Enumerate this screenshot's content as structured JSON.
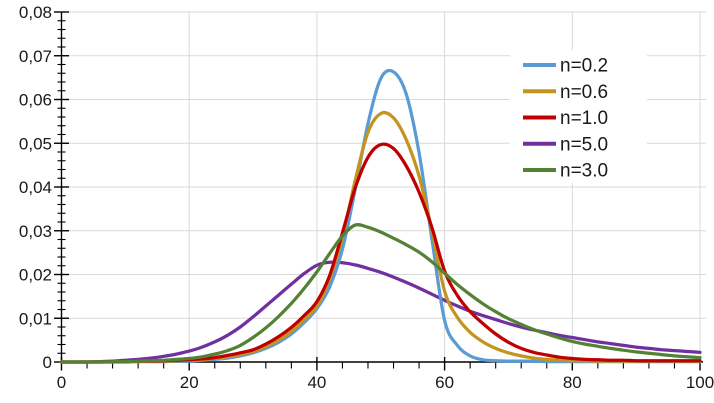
{
  "chart_data": {
    "type": "line",
    "title": "",
    "xlabel": "",
    "ylabel": "",
    "xlim": [
      0,
      100
    ],
    "ylim": [
      0,
      0.08
    ],
    "grid": true,
    "decimal_separator": ",",
    "x_tick_labels": [
      "0",
      "20",
      "40",
      "60",
      "80",
      "100"
    ],
    "x_major_ticks": [
      0,
      20,
      40,
      60,
      80,
      100
    ],
    "x_minor_step": 4,
    "y_tick_labels": [
      "0",
      "0,01",
      "0,02",
      "0,03",
      "0,04",
      "0,05",
      "0,06",
      "0,07",
      "0,08"
    ],
    "y_major_ticks": [
      0,
      0.01,
      0.02,
      0.03,
      0.04,
      0.05,
      0.06,
      0.07,
      0.08
    ],
    "y_minor_step": 0.002,
    "legend_position": "top-right-inside",
    "legend_order": [
      "n=0.2",
      "n=0.6",
      "n=1.0",
      "n=5.0",
      "n=3.0"
    ],
    "draw_order": [
      "n=5.0",
      "n=0.2",
      "n=0.6",
      "n=1.0",
      "n=3.0"
    ],
    "x": [
      0,
      2,
      4,
      6,
      8,
      10,
      12,
      14,
      16,
      18,
      20,
      22,
      24,
      26,
      28,
      30,
      32,
      34,
      36,
      38,
      40,
      42,
      44,
      46,
      48,
      50,
      52,
      54,
      56,
      58,
      60,
      62,
      64,
      66,
      68,
      70,
      72,
      74,
      76,
      78,
      80,
      82,
      84,
      86,
      88,
      90,
      92,
      94,
      96,
      98,
      100
    ],
    "series": [
      {
        "name": "n=0.2",
        "color": "#5B9BD5",
        "peak": {
          "x": 51,
          "y": 0.0665
        },
        "values": [
          0,
          0,
          0,
          0,
          0,
          0,
          0.0001,
          0.0001,
          0.0001,
          0.0002,
          0.0002,
          0.0004,
          0.0006,
          0.0009,
          0.0014,
          0.0021,
          0.0031,
          0.0045,
          0.0064,
          0.009,
          0.0122,
          0.0172,
          0.0258,
          0.0395,
          0.0545,
          0.0648,
          0.0663,
          0.0612,
          0.0478,
          0.0283,
          0.0095,
          0.0038,
          0.0014,
          0.0005,
          0.0003,
          0.0002,
          0.0002,
          0.0002,
          0.0001,
          0.0001,
          0.0001,
          0.0001,
          0.0001,
          0.0001,
          0.0001,
          0.0001,
          0.0001,
          0.0001,
          0.0001,
          0.0001,
          0.0001
        ]
      },
      {
        "name": "n=0.6",
        "color": "#C4941E",
        "peak": {
          "x": 51,
          "y": 0.057
        },
        "values": [
          0,
          0,
          0,
          0,
          0,
          0.0001,
          0.0001,
          0.0002,
          0.0002,
          0.0003,
          0.0004,
          0.0006,
          0.0008,
          0.0012,
          0.0017,
          0.0024,
          0.0035,
          0.005,
          0.007,
          0.0096,
          0.0128,
          0.019,
          0.0285,
          0.0415,
          0.0525,
          0.0568,
          0.0558,
          0.0508,
          0.0425,
          0.0302,
          0.0162,
          0.0102,
          0.0068,
          0.0046,
          0.0031,
          0.0021,
          0.0014,
          0.0009,
          0.0006,
          0.0004,
          0.0003,
          0.0003,
          0.0002,
          0.0002,
          0.0002,
          0.0002,
          0.0002,
          0.0002,
          0.0002,
          0.0002,
          0.0002
        ]
      },
      {
        "name": "n=1.0",
        "color": "#C00000",
        "peak": {
          "x": 50,
          "y": 0.05
        },
        "values": [
          0,
          0,
          0,
          0,
          0.0001,
          0.0001,
          0.0002,
          0.0002,
          0.0003,
          0.0004,
          0.0005,
          0.0007,
          0.001,
          0.0015,
          0.0021,
          0.0028,
          0.0041,
          0.0058,
          0.0079,
          0.0106,
          0.0138,
          0.0198,
          0.0295,
          0.0398,
          0.0468,
          0.0497,
          0.0488,
          0.0448,
          0.0388,
          0.0308,
          0.0208,
          0.0152,
          0.0115,
          0.0088,
          0.0064,
          0.0045,
          0.0031,
          0.0022,
          0.0016,
          0.0011,
          0.0008,
          0.0006,
          0.0005,
          0.0004,
          0.0004,
          0.0003,
          0.0003,
          0.0003,
          0.0003,
          0.0003,
          0.0003
        ]
      },
      {
        "name": "n=5.0",
        "color": "#7030A0",
        "peak": {
          "x": 41,
          "y": 0.023
        },
        "values": [
          0,
          0,
          0,
          0.0001,
          0.0002,
          0.0004,
          0.0006,
          0.0009,
          0.0013,
          0.0018,
          0.0025,
          0.0034,
          0.0046,
          0.0061,
          0.008,
          0.0103,
          0.0128,
          0.0153,
          0.0178,
          0.0202,
          0.0221,
          0.0228,
          0.0227,
          0.0222,
          0.0214,
          0.0205,
          0.0194,
          0.0182,
          0.0169,
          0.0155,
          0.0141,
          0.0128,
          0.0116,
          0.0106,
          0.0097,
          0.0088,
          0.008,
          0.0073,
          0.0067,
          0.0061,
          0.0056,
          0.0051,
          0.0046,
          0.0042,
          0.0038,
          0.0034,
          0.0031,
          0.0028,
          0.0026,
          0.0024,
          0.0022
        ]
      },
      {
        "name": "n=3.0",
        "color": "#548235",
        "peak": {
          "x": 46,
          "y": 0.0313
        },
        "values": [
          0,
          0,
          0,
          0,
          0.0001,
          0.0001,
          0.0002,
          0.0003,
          0.0004,
          0.0006,
          0.0008,
          0.0012,
          0.0018,
          0.0026,
          0.0038,
          0.0056,
          0.0078,
          0.0104,
          0.0134,
          0.0168,
          0.0206,
          0.0248,
          0.0288,
          0.0313,
          0.0308,
          0.0297,
          0.0283,
          0.0268,
          0.0251,
          0.0229,
          0.0203,
          0.0177,
          0.0154,
          0.0133,
          0.0115,
          0.0099,
          0.0086,
          0.0074,
          0.0064,
          0.0055,
          0.0047,
          0.0041,
          0.0036,
          0.0031,
          0.0027,
          0.0023,
          0.002,
          0.0017,
          0.0014,
          0.0012,
          0.001
        ]
      }
    ],
    "colors": {
      "gridline": "#D9D9D9",
      "axis": "#000000",
      "tick_label": "#1a1a1a",
      "legend_text": "#1a1a1a",
      "background": "#ffffff"
    }
  }
}
